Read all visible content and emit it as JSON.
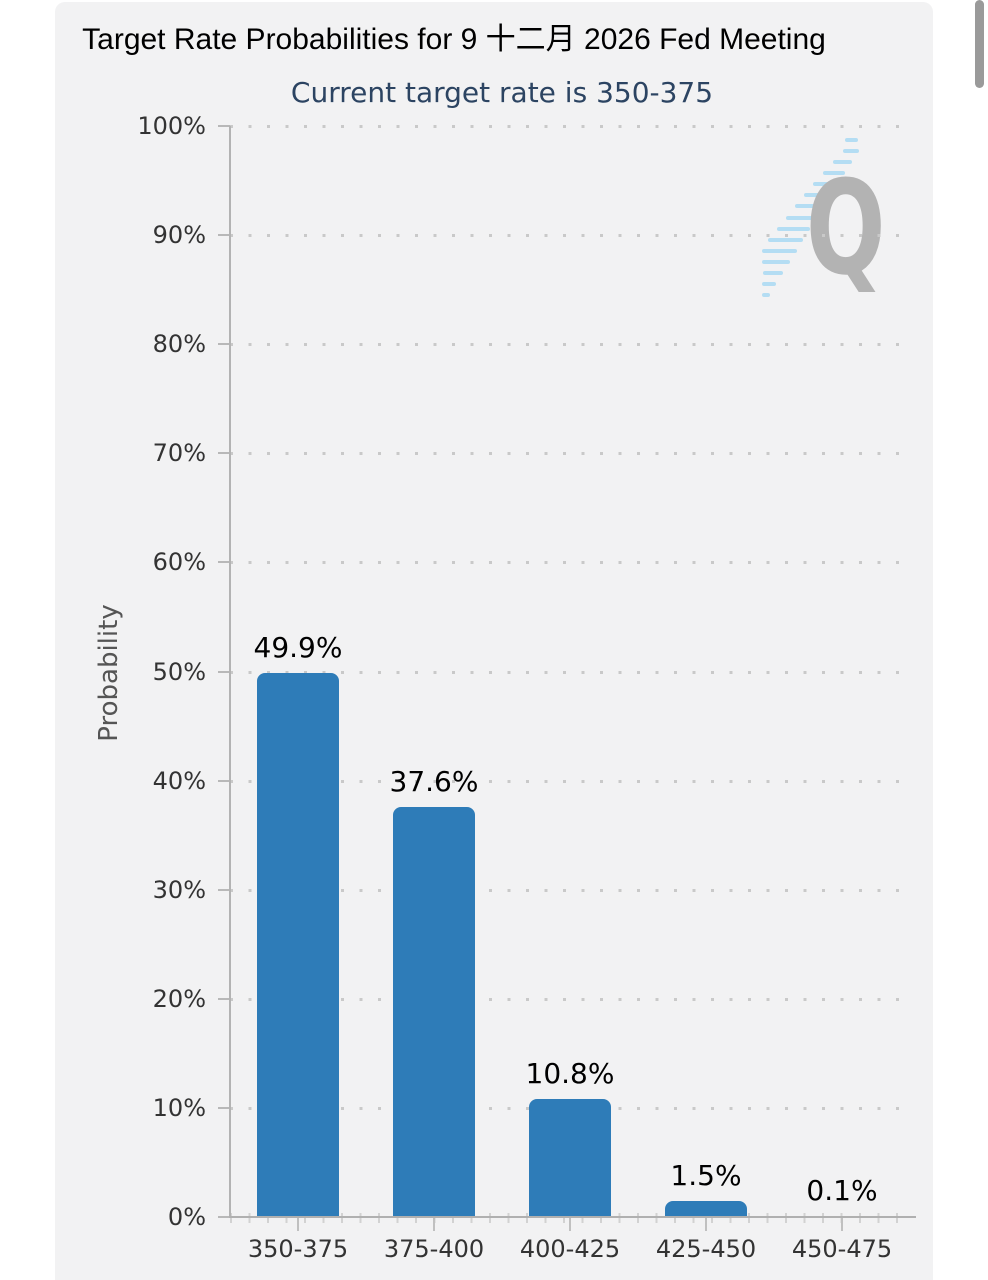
{
  "chart": {
    "title": "Target Rate Probabilities for 9 十二月 2026 Fed Meeting",
    "subtitle": "Current target rate is 350-375",
    "context_menu_icon": "hamburger-menu-icon",
    "watermark_letter": "Q"
  },
  "colors": {
    "bar": "#2e7cb8",
    "subtitle_text": "#2c4462",
    "watermark_q": "#b3b3b3",
    "watermark_dashes": "#a9d9f2",
    "panel_background": "#f2f2f3"
  },
  "chart_data": {
    "type": "bar",
    "title": "Target Rate Probabilities for 9 十二月 2026 Fed Meeting",
    "subtitle": "Current target rate is 350-375",
    "categories": [
      "350-375",
      "375-400",
      "400-425",
      "425-450",
      "450-475"
    ],
    "values": [
      49.9,
      37.6,
      10.8,
      1.5,
      0.1
    ],
    "data_labels": [
      "49.9%",
      "37.6%",
      "10.8%",
      "1.5%",
      "0.1%"
    ],
    "xlabel": "",
    "ylabel": "Probability",
    "ylim": [
      0,
      100
    ],
    "yticks": [
      0,
      10,
      20,
      30,
      40,
      50,
      60,
      70,
      80,
      90,
      100
    ],
    "ytick_labels": [
      "0%",
      "10%",
      "20%",
      "30%",
      "40%",
      "50%",
      "60%",
      "70%",
      "80%",
      "90%",
      "100%"
    ],
    "grid": "dotted-horizontal",
    "legend": "none",
    "bar_color": "#2e7cb8"
  }
}
